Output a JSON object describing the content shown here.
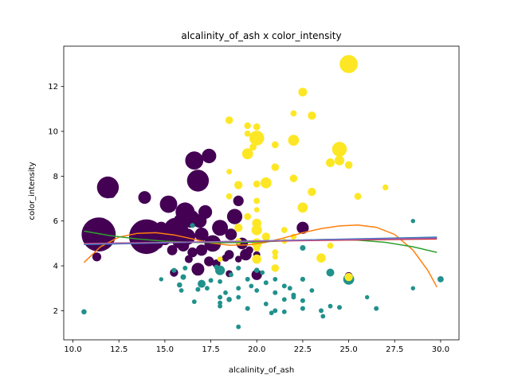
{
  "chart_data": {
    "type": "scatter",
    "title": "alcalinity_of_ash x color_intensity",
    "xlabel": "alcalinity_of_ash",
    "ylabel": "color_intensity",
    "xlim": [
      9.5,
      31.0
    ],
    "ylim": [
      0.7,
      13.8
    ],
    "xticks": [
      10.0,
      12.5,
      15.0,
      17.5,
      20.0,
      22.5,
      25.0,
      27.5,
      30.0
    ],
    "xtick_labels": [
      "10.0",
      "12.5",
      "15.0",
      "17.5",
      "20.0",
      "22.5",
      "25.0",
      "27.5",
      "30.0"
    ],
    "yticks": [
      2,
      4,
      6,
      8,
      10,
      12
    ],
    "ytick_labels": [
      "2",
      "4",
      "6",
      "8",
      "10",
      "12"
    ],
    "grid": false,
    "colors": {
      "class0": "#440154",
      "class1": "#21918c",
      "class2": "#fde725",
      "line_blue": "#1f77b4",
      "line_orange": "#ff7f0e",
      "line_green": "#2ca02c",
      "line_red": "#d62728",
      "line_purple": "#9467bd"
    },
    "series": [
      {
        "class": 0,
        "color": "#440154",
        "points": [
          {
            "x": 11.4,
            "y": 5.4,
            "s": 1450
          },
          {
            "x": 14.0,
            "y": 5.3,
            "s": 1500
          },
          {
            "x": 11.9,
            "y": 7.5,
            "s": 560
          },
          {
            "x": 12.1,
            "y": 7.2,
            "s": 55
          },
          {
            "x": 11.3,
            "y": 4.4,
            "s": 75
          },
          {
            "x": 13.9,
            "y": 7.05,
            "s": 170
          },
          {
            "x": 15.2,
            "y": 6.75,
            "s": 340
          },
          {
            "x": 15.6,
            "y": 5.6,
            "s": 720
          },
          {
            "x": 15.9,
            "y": 6.0,
            "s": 260
          },
          {
            "x": 16.1,
            "y": 6.4,
            "s": 420
          },
          {
            "x": 16.4,
            "y": 6.1,
            "s": 360
          },
          {
            "x": 16.6,
            "y": 8.7,
            "s": 380
          },
          {
            "x": 16.8,
            "y": 7.8,
            "s": 560
          },
          {
            "x": 17.4,
            "y": 8.9,
            "s": 230
          },
          {
            "x": 16.9,
            "y": 6.0,
            "s": 200
          },
          {
            "x": 17.2,
            "y": 6.4,
            "s": 200
          },
          {
            "x": 16.2,
            "y": 5.3,
            "s": 310
          },
          {
            "x": 15.8,
            "y": 5.1,
            "s": 220
          },
          {
            "x": 15.0,
            "y": 5.2,
            "s": 160
          },
          {
            "x": 14.6,
            "y": 5.0,
            "s": 120
          },
          {
            "x": 15.4,
            "y": 4.7,
            "s": 100
          },
          {
            "x": 16.0,
            "y": 4.9,
            "s": 140
          },
          {
            "x": 16.5,
            "y": 4.6,
            "s": 95
          },
          {
            "x": 17.0,
            "y": 4.7,
            "s": 130
          },
          {
            "x": 17.6,
            "y": 5.0,
            "s": 310
          },
          {
            "x": 18.0,
            "y": 5.7,
            "s": 280
          },
          {
            "x": 18.6,
            "y": 5.4,
            "s": 140
          },
          {
            "x": 18.8,
            "y": 6.2,
            "s": 260
          },
          {
            "x": 19.0,
            "y": 6.9,
            "s": 110
          },
          {
            "x": 18.5,
            "y": 4.5,
            "s": 85
          },
          {
            "x": 19.4,
            "y": 4.5,
            "s": 140
          },
          {
            "x": 19.2,
            "y": 5.0,
            "s": 140
          },
          {
            "x": 20.0,
            "y": 3.6,
            "s": 110
          },
          {
            "x": 16.8,
            "y": 3.85,
            "s": 170
          },
          {
            "x": 17.4,
            "y": 4.2,
            "s": 95
          },
          {
            "x": 18.3,
            "y": 4.35,
            "s": 45
          },
          {
            "x": 18.5,
            "y": 3.65,
            "s": 40
          },
          {
            "x": 17.8,
            "y": 4.1,
            "s": 60
          },
          {
            "x": 19.0,
            "y": 4.3,
            "s": 35
          },
          {
            "x": 19.6,
            "y": 4.7,
            "s": 50
          },
          {
            "x": 20.0,
            "y": 4.5,
            "s": 40
          },
          {
            "x": 22.5,
            "y": 5.7,
            "s": 150
          },
          {
            "x": 15.5,
            "y": 3.7,
            "s": 60
          },
          {
            "x": 16.3,
            "y": 4.3,
            "s": 55
          },
          {
            "x": 17.0,
            "y": 5.4,
            "s": 200
          },
          {
            "x": 14.8,
            "y": 5.7,
            "s": 150
          },
          {
            "x": 13.7,
            "y": 5.45,
            "s": 200
          },
          {
            "x": 25.0,
            "y": 3.55,
            "s": 50
          }
        ]
      },
      {
        "class": 1,
        "color": "#21918c",
        "points": [
          {
            "x": 10.6,
            "y": 1.95,
            "s": 18
          },
          {
            "x": 14.8,
            "y": 3.4,
            "s": 10
          },
          {
            "x": 15.8,
            "y": 3.15,
            "s": 18
          },
          {
            "x": 15.9,
            "y": 2.9,
            "s": 12
          },
          {
            "x": 16.0,
            "y": 3.5,
            "s": 22
          },
          {
            "x": 16.1,
            "y": 3.9,
            "s": 14
          },
          {
            "x": 16.6,
            "y": 2.4,
            "s": 12
          },
          {
            "x": 16.8,
            "y": 2.95,
            "s": 14
          },
          {
            "x": 17.0,
            "y": 3.2,
            "s": 55
          },
          {
            "x": 17.3,
            "y": 3.0,
            "s": 12
          },
          {
            "x": 17.5,
            "y": 3.35,
            "s": 14
          },
          {
            "x": 18.0,
            "y": 3.8,
            "s": 90
          },
          {
            "x": 18.0,
            "y": 3.3,
            "s": 12
          },
          {
            "x": 18.0,
            "y": 2.6,
            "s": 14
          },
          {
            "x": 18.0,
            "y": 2.2,
            "s": 12
          },
          {
            "x": 18.0,
            "y": 2.35,
            "s": 12
          },
          {
            "x": 18.5,
            "y": 2.5,
            "s": 18
          },
          {
            "x": 18.6,
            "y": 3.6,
            "s": 14
          },
          {
            "x": 19.0,
            "y": 3.0,
            "s": 12
          },
          {
            "x": 19.0,
            "y": 2.6,
            "s": 12
          },
          {
            "x": 19.0,
            "y": 3.9,
            "s": 14
          },
          {
            "x": 19.0,
            "y": 1.28,
            "s": 12
          },
          {
            "x": 19.5,
            "y": 2.1,
            "s": 14
          },
          {
            "x": 19.5,
            "y": 3.4,
            "s": 14
          },
          {
            "x": 20.0,
            "y": 2.9,
            "s": 12
          },
          {
            "x": 20.0,
            "y": 3.8,
            "s": 18
          },
          {
            "x": 20.5,
            "y": 2.3,
            "s": 12
          },
          {
            "x": 20.5,
            "y": 3.25,
            "s": 14
          },
          {
            "x": 20.8,
            "y": 1.9,
            "s": 12
          },
          {
            "x": 21.0,
            "y": 2.8,
            "s": 14
          },
          {
            "x": 21.0,
            "y": 2.0,
            "s": 14
          },
          {
            "x": 21.0,
            "y": 3.4,
            "s": 12
          },
          {
            "x": 21.5,
            "y": 3.1,
            "s": 14
          },
          {
            "x": 21.5,
            "y": 2.5,
            "s": 12
          },
          {
            "x": 21.5,
            "y": 1.95,
            "s": 12
          },
          {
            "x": 22.0,
            "y": 2.7,
            "s": 14
          },
          {
            "x": 22.0,
            "y": 2.6,
            "s": 12
          },
          {
            "x": 22.5,
            "y": 3.4,
            "s": 16
          },
          {
            "x": 22.5,
            "y": 2.1,
            "s": 14
          },
          {
            "x": 22.5,
            "y": 2.45,
            "s": 14
          },
          {
            "x": 22.5,
            "y": 4.8,
            "s": 22
          },
          {
            "x": 23.0,
            "y": 2.9,
            "s": 12
          },
          {
            "x": 23.5,
            "y": 2.0,
            "s": 14
          },
          {
            "x": 23.6,
            "y": 1.75,
            "s": 12
          },
          {
            "x": 24.0,
            "y": 2.2,
            "s": 12
          },
          {
            "x": 24.0,
            "y": 3.7,
            "s": 55
          },
          {
            "x": 24.5,
            "y": 2.15,
            "s": 14
          },
          {
            "x": 25.0,
            "y": 3.4,
            "s": 120
          },
          {
            "x": 26.0,
            "y": 2.6,
            "s": 10
          },
          {
            "x": 26.5,
            "y": 2.1,
            "s": 14
          },
          {
            "x": 28.5,
            "y": 3.0,
            "s": 10
          },
          {
            "x": 28.5,
            "y": 6.0,
            "s": 10
          },
          {
            "x": 30.0,
            "y": 3.4,
            "s": 30
          },
          {
            "x": 19.7,
            "y": 3.1,
            "s": 12
          },
          {
            "x": 18.3,
            "y": 2.8,
            "s": 12
          },
          {
            "x": 17.8,
            "y": 3.95,
            "s": 14
          },
          {
            "x": 20.3,
            "y": 3.7,
            "s": 12
          },
          {
            "x": 21.8,
            "y": 3.0,
            "s": 12
          },
          {
            "x": 15.5,
            "y": 3.8,
            "s": 16
          },
          {
            "x": 16.5,
            "y": 5.8,
            "s": 16
          }
        ]
      },
      {
        "class": 2,
        "color": "#fde725",
        "points": [
          {
            "x": 25.0,
            "y": 13.0,
            "s": 380
          },
          {
            "x": 22.5,
            "y": 11.75,
            "s": 70
          },
          {
            "x": 22.0,
            "y": 10.8,
            "s": 30
          },
          {
            "x": 23.0,
            "y": 10.7,
            "s": 60
          },
          {
            "x": 18.5,
            "y": 10.5,
            "s": 50
          },
          {
            "x": 19.5,
            "y": 10.25,
            "s": 35
          },
          {
            "x": 20.0,
            "y": 10.2,
            "s": 40
          },
          {
            "x": 20.0,
            "y": 9.7,
            "s": 240
          },
          {
            "x": 19.5,
            "y": 9.9,
            "s": 30
          },
          {
            "x": 19.8,
            "y": 9.3,
            "s": 40
          },
          {
            "x": 21.0,
            "y": 9.4,
            "s": 40
          },
          {
            "x": 22.0,
            "y": 9.6,
            "s": 120
          },
          {
            "x": 24.5,
            "y": 9.2,
            "s": 240
          },
          {
            "x": 19.5,
            "y": 9.0,
            "s": 120
          },
          {
            "x": 21.0,
            "y": 8.4,
            "s": 50
          },
          {
            "x": 24.0,
            "y": 8.6,
            "s": 70
          },
          {
            "x": 24.5,
            "y": 8.7,
            "s": 90
          },
          {
            "x": 25.0,
            "y": 8.5,
            "s": 50
          },
          {
            "x": 18.5,
            "y": 8.2,
            "s": 20
          },
          {
            "x": 22.0,
            "y": 7.9,
            "s": 50
          },
          {
            "x": 20.5,
            "y": 7.7,
            "s": 120
          },
          {
            "x": 19.0,
            "y": 7.6,
            "s": 60
          },
          {
            "x": 20.0,
            "y": 7.65,
            "s": 40
          },
          {
            "x": 27.0,
            "y": 7.5,
            "s": 25
          },
          {
            "x": 23.0,
            "y": 7.3,
            "s": 60
          },
          {
            "x": 18.5,
            "y": 7.1,
            "s": 30
          },
          {
            "x": 25.5,
            "y": 7.1,
            "s": 40
          },
          {
            "x": 20.0,
            "y": 6.9,
            "s": 30
          },
          {
            "x": 22.5,
            "y": 6.6,
            "s": 100
          },
          {
            "x": 20.0,
            "y": 6.5,
            "s": 20
          },
          {
            "x": 19.5,
            "y": 6.2,
            "s": 40
          },
          {
            "x": 20.0,
            "y": 5.9,
            "s": 80
          },
          {
            "x": 20.0,
            "y": 5.6,
            "s": 110
          },
          {
            "x": 19.0,
            "y": 5.7,
            "s": 60
          },
          {
            "x": 21.5,
            "y": 5.6,
            "s": 30
          },
          {
            "x": 20.5,
            "y": 5.3,
            "s": 60
          },
          {
            "x": 19.0,
            "y": 5.1,
            "s": 30
          },
          {
            "x": 20.0,
            "y": 5.0,
            "s": 100
          },
          {
            "x": 20.0,
            "y": 4.8,
            "s": 40
          },
          {
            "x": 21.0,
            "y": 4.6,
            "s": 30
          },
          {
            "x": 21.0,
            "y": 4.4,
            "s": 20
          },
          {
            "x": 20.0,
            "y": 4.3,
            "s": 80
          },
          {
            "x": 23.5,
            "y": 4.35,
            "s": 80
          },
          {
            "x": 24.0,
            "y": 4.9,
            "s": 30
          },
          {
            "x": 18.0,
            "y": 4.3,
            "s": 20
          },
          {
            "x": 21.0,
            "y": 3.9,
            "s": 50
          },
          {
            "x": 25.0,
            "y": 3.5,
            "s": 60
          },
          {
            "x": 21.5,
            "y": 5.1,
            "s": 20
          },
          {
            "x": 22.0,
            "y": 5.3,
            "s": 25
          }
        ]
      }
    ],
    "lines": [
      {
        "color": "#ff7f0e",
        "x": [
          10.6,
          11.5,
          12.5,
          13.5,
          14.5,
          15.5,
          16.5,
          17.5,
          18.5,
          19.5,
          20.5,
          21.5,
          22.5,
          23.5,
          24.5,
          25.5,
          26.5,
          27.5,
          28.5,
          29.3,
          29.8
        ],
        "y": [
          4.15,
          4.85,
          5.28,
          5.45,
          5.48,
          5.38,
          5.2,
          5.02,
          4.92,
          4.93,
          5.05,
          5.25,
          5.48,
          5.66,
          5.78,
          5.82,
          5.72,
          5.4,
          4.7,
          3.8,
          3.05
        ]
      },
      {
        "color": "#2ca02c",
        "x": [
          10.6,
          12.0,
          13.5,
          15.0,
          16.5,
          18.0,
          19.5,
          21.0,
          22.5,
          24.0,
          25.5,
          27.0,
          28.5,
          29.8
        ],
        "y": [
          5.55,
          5.35,
          5.2,
          5.1,
          5.05,
          5.03,
          5.05,
          5.1,
          5.15,
          5.18,
          5.15,
          5.05,
          4.85,
          4.6
        ]
      },
      {
        "color": "#1f77b4",
        "x": [
          10.6,
          29.8
        ],
        "y": [
          4.95,
          5.28
        ]
      },
      {
        "color": "#d62728",
        "x": [
          10.6,
          29.8
        ],
        "y": [
          5.0,
          5.2
        ]
      },
      {
        "color": "#9467bd",
        "x": [
          10.6,
          29.8
        ],
        "y": [
          4.98,
          5.24
        ]
      }
    ]
  }
}
